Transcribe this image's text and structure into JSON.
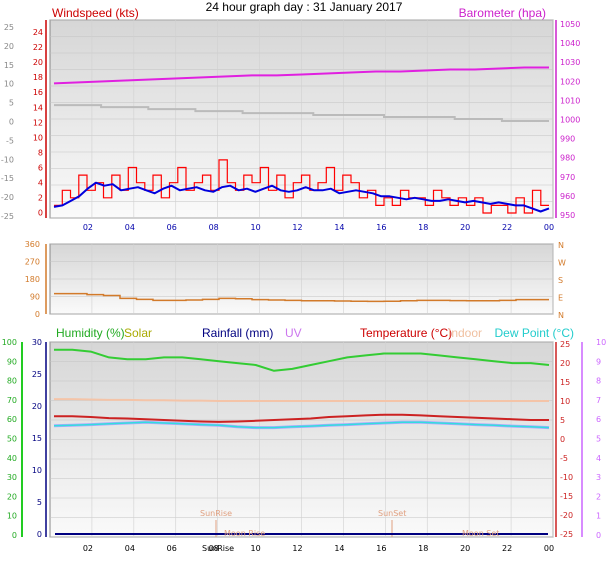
{
  "title": "24 hour graph day : 31 January 2017",
  "x_ticks": [
    "02",
    "04",
    "06",
    "08",
    "10",
    "12",
    "14",
    "16",
    "18",
    "20",
    "22",
    "00"
  ],
  "colors": {
    "wind": "#ff0000",
    "wind_avg": "#0000dd",
    "baro": "#e020e0",
    "gust_bg": "#bbbbbb",
    "dir": "#d27a2a",
    "humidity": "#33cc33",
    "solar": "#cccc00",
    "rain": "#000080",
    "uv": "#cc66ff",
    "temp": "#cc2222",
    "indoor": "#f4c4a8",
    "dew": "#33dddd",
    "dewlight": "#aaaaff"
  },
  "chart_data": [
    {
      "type": "line",
      "name": "wind-panel",
      "left_label": "Windspeed (kts)",
      "right_label": "Barometer (hpa)",
      "outer_left_ticks": [
        "25",
        "20",
        "15",
        "10",
        "5",
        "0",
        "-5",
        "-10",
        "-15",
        "-20",
        "-25"
      ],
      "left_ticks": [
        "24",
        "22",
        "20",
        "18",
        "16",
        "14",
        "12",
        "10",
        "8",
        "6",
        "4",
        "2",
        "0"
      ],
      "right_ticks": [
        "1050",
        "1040",
        "1030",
        "1020",
        "1010",
        "1000",
        "990",
        "980",
        "970",
        "960",
        "950"
      ],
      "ylim_wind": [
        0,
        25
      ],
      "ylim_baro": [
        950,
        1050
      ],
      "series": [
        {
          "values": [
            1,
            3,
            2,
            5,
            3,
            4,
            2,
            5,
            3,
            6,
            4,
            3,
            5,
            2,
            4,
            6,
            3,
            4,
            5,
            3,
            7,
            4,
            3,
            5,
            4,
            6,
            3,
            5,
            2,
            4,
            5,
            3,
            4,
            6,
            3,
            5,
            4,
            2,
            3,
            1,
            2,
            1,
            3,
            2,
            2,
            1,
            3,
            2,
            1,
            2,
            1,
            2,
            0,
            1,
            1,
            0,
            2,
            0,
            3,
            1
          ]
        },
        {
          "values": [
            0.8,
            1,
            1.6,
            2.2,
            3.2,
            4,
            3.6,
            3.8,
            3,
            3.2,
            3.4,
            3,
            2.6,
            3.2,
            3.6,
            3,
            3.2,
            3.4,
            3,
            2.8,
            3.4,
            3.6,
            3,
            3.2,
            2.8,
            3.2,
            3.6,
            3,
            2.8,
            3,
            3.4,
            3,
            3,
            3.2,
            2.6,
            2.8,
            3,
            2.8,
            2.6,
            2.2,
            2.2,
            2,
            1.8,
            2,
            1.8,
            1.6,
            1.6,
            1.8,
            1.6,
            1.4,
            1.6,
            1.4,
            1.2,
            1.4,
            1.2,
            1,
            1,
            0.6,
            0.2,
            0.6
          ]
        },
        {
          "values": [
            1018,
            1018.5,
            1019,
            1019.5,
            1020,
            1020.5,
            1021,
            1021.5,
            1022,
            1022,
            1022.5,
            1023,
            1023.5,
            1024,
            1024,
            1024.5,
            1025,
            1025,
            1025.5,
            1026,
            1026
          ]
        },
        {
          "values": [
            1007,
            1007,
            1006,
            1006,
            1005,
            1005,
            1004,
            1004,
            1003,
            1003,
            1003,
            1002,
            1002,
            1002,
            1001,
            1001,
            1001,
            1000,
            1000,
            999,
            999
          ]
        }
      ]
    },
    {
      "type": "line",
      "name": "direction-panel",
      "left_ticks": [
        "360",
        "270",
        "180",
        "90",
        "0"
      ],
      "right_ticks": [
        "N",
        "W",
        "S",
        "E",
        "N"
      ],
      "ylim": [
        0,
        360
      ],
      "series": [
        {
          "values": [
            105,
            105,
            100,
            95,
            80,
            75,
            70,
            70,
            72,
            75,
            80,
            78,
            74,
            72,
            70,
            68,
            68,
            67,
            66,
            65,
            66,
            68,
            70,
            70,
            69,
            68,
            68,
            70,
            74,
            74
          ]
        }
      ]
    },
    {
      "type": "line",
      "name": "weather-panel",
      "legend": [
        "Humidity (%)",
        "Solar",
        "Rainfall (mm)",
        "UV",
        "Temperature (°C)",
        "Indoor",
        "Dew Point (°C)"
      ],
      "outer_left_ticks": [
        "100",
        "90",
        "80",
        "70",
        "60",
        "50",
        "40",
        "30",
        "20",
        "10",
        "0"
      ],
      "left_ticks": [
        "30",
        "25",
        "20",
        "15",
        "10",
        "5",
        "0"
      ],
      "right_ticks": [
        "25",
        "20",
        "15",
        "10",
        "5",
        "0",
        "-5",
        "-10",
        "-15",
        "-20",
        "-25"
      ],
      "outer_right_ticks": [
        "10",
        "9",
        "8",
        "7",
        "6",
        "5",
        "4",
        "3",
        "2",
        "1",
        "0"
      ],
      "annotations": [
        "SunRise",
        "SunSet",
        "Moon Rise",
        "Moon Set",
        "SunRise"
      ],
      "ylim_humidity": [
        0,
        100
      ],
      "ylim_temp": [
        -25,
        25
      ],
      "series": [
        {
          "values": [
            96,
            96,
            95,
            92,
            91,
            91,
            92,
            92,
            91,
            90,
            89,
            88,
            85,
            86,
            88,
            90,
            92,
            93,
            94,
            94,
            94,
            93,
            92,
            91,
            90,
            89,
            89,
            88
          ]
        },
        {
          "values": [
            6,
            6,
            5.8,
            5.5,
            5.4,
            5.2,
            5,
            4.8,
            4.6,
            4.5,
            4.6,
            4.8,
            5,
            5.2,
            5.4,
            5.8,
            6,
            6.2,
            6.4,
            6.4,
            6.2,
            6,
            5.8,
            5.6,
            5.4,
            5.2,
            5,
            5
          ]
        },
        {
          "values": [
            3.5,
            3.6,
            3.8,
            4,
            4.2,
            4.4,
            4.2,
            4,
            3.8,
            3.6,
            3.2,
            3,
            3,
            3.2,
            3.4,
            3.6,
            3.8,
            4,
            4.2,
            4.4,
            4.4,
            4.2,
            4,
            3.8,
            3.6,
            3.4,
            3.2,
            3
          ]
        },
        {
          "values": [
            10.5,
            10.5,
            10.4,
            10.3,
            10.3,
            10.2,
            10.2,
            10.1,
            10.1,
            10,
            10,
            10,
            10,
            10,
            10,
            10,
            10,
            10,
            10,
            10,
            10,
            10,
            10,
            10,
            10,
            10,
            10,
            10
          ]
        }
      ]
    }
  ]
}
